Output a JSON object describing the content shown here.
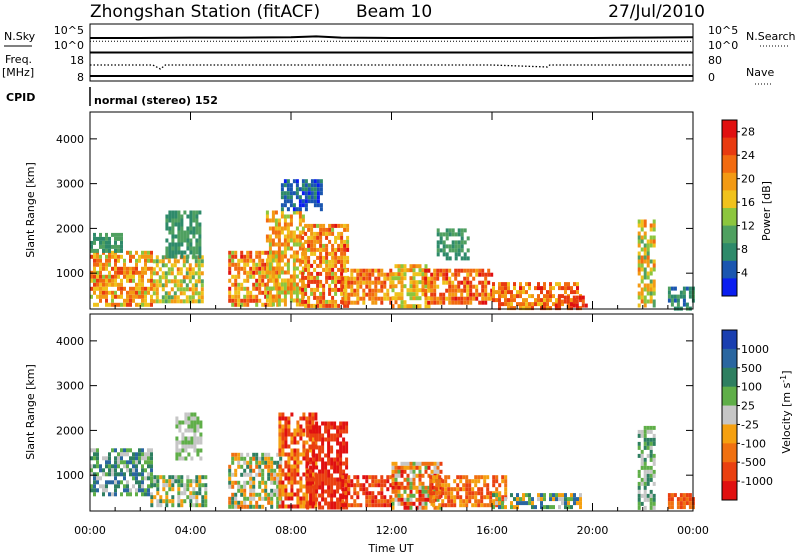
{
  "header": {
    "station": "Zhongshan Station (fitACF)",
    "beam": "Beam 10",
    "date": "27/Jul/2010"
  },
  "top_panels": {
    "nsky_label": "N.Sky",
    "nsky_ticks": [
      "10^5",
      "10^0"
    ],
    "nsearch_label": "N.Search",
    "freq_label": "Freq.",
    "freq_unit": "[MHz]",
    "freq_ticks": [
      "18",
      "8"
    ],
    "nave_label": "Nave",
    "nave_ticks": [
      "80",
      "0"
    ],
    "cpid_label": "CPID",
    "cpid_text": "normal (stereo) 152"
  },
  "colors": {
    "power": [
      "#0a1ef0",
      "#1a56b0",
      "#2e8a6a",
      "#4fa060",
      "#8cc63e",
      "#f0c21c",
      "#f39a14",
      "#f26b10",
      "#e83a10",
      "#e01010"
    ],
    "velocity": [
      "#1a3fb0",
      "#2a66a0",
      "#2e7f60",
      "#5fae48",
      "#c6c6c6",
      "#f5a010",
      "#f07010",
      "#ea4010",
      "#e01010"
    ]
  },
  "chart_data": [
    {
      "type": "line",
      "title": "Zhongshan Station (fitACF)",
      "subtitle": "Beam 10",
      "series": [
        {
          "name": "N.Sky",
          "x": [
            0,
            2,
            4,
            6,
            8,
            9,
            10,
            12,
            14,
            16,
            18,
            20,
            22,
            24
          ],
          "y": [
            3.0,
            3.0,
            3.1,
            3.1,
            3.2,
            3.4,
            3.1,
            3.0,
            3.0,
            3.0,
            3.0,
            3.0,
            3.1,
            3.2
          ]
        },
        {
          "name": "N.Search",
          "x": [
            0,
            4,
            8,
            12,
            16,
            20,
            24
          ],
          "y": [
            2.2,
            2.2,
            2.2,
            2.2,
            2.2,
            2.2,
            2.2
          ]
        }
      ],
      "y_ticks": [
        "10^5",
        "10^0"
      ],
      "y2_ticks": [
        "10^5",
        "10^0"
      ]
    },
    {
      "type": "line",
      "series": [
        {
          "name": "Freq.",
          "x": [
            0,
            2.5,
            2.8,
            3.0,
            4,
            8,
            12,
            16,
            18.2,
            18.3,
            20,
            24
          ],
          "y": [
            15,
            15,
            13,
            15,
            15,
            15,
            15,
            15,
            14,
            15,
            15,
            15
          ]
        },
        {
          "name": "Nave",
          "x": [
            0,
            24
          ],
          "y": [
            12,
            12
          ]
        }
      ],
      "ylabel": "Freq. [MHz]",
      "ylim": [
        8,
        18
      ],
      "y2lim": [
        0,
        80
      ],
      "y_ticks": [
        "18",
        "8"
      ],
      "y2_ticks": [
        "80",
        "0"
      ]
    },
    {
      "type": "heatmap",
      "quantity": "Power [dB]",
      "ylabel": "Slant Range [km]",
      "xlim": [
        0,
        24
      ],
      "ylim": [
        200,
        4600
      ],
      "y_ticks": [
        1000,
        2000,
        3000,
        4000
      ],
      "colorbar": {
        "label": "Power [dB]",
        "ticks": [
          4,
          8,
          12,
          16,
          20,
          24,
          28
        ],
        "range": [
          0,
          30
        ]
      },
      "regions": [
        {
          "t": [
            0.0,
            2.5
          ],
          "r": [
            300,
            1500
          ],
          "v": [
            14,
            26
          ]
        },
        {
          "t": [
            0.0,
            1.2
          ],
          "r": [
            1500,
            1900
          ],
          "v": [
            6,
            12
          ]
        },
        {
          "t": [
            2.5,
            4.5
          ],
          "r": [
            400,
            1400
          ],
          "v": [
            10,
            22
          ]
        },
        {
          "t": [
            3.0,
            4.4
          ],
          "r": [
            1400,
            2400
          ],
          "v": [
            6,
            12
          ]
        },
        {
          "t": [
            5.5,
            7.5
          ],
          "r": [
            300,
            1500
          ],
          "v": [
            14,
            28
          ]
        },
        {
          "t": [
            7.0,
            8.5
          ],
          "r": [
            300,
            2400
          ],
          "v": [
            12,
            24
          ]
        },
        {
          "t": [
            7.6,
            9.2
          ],
          "r": [
            2400,
            3100
          ],
          "v": [
            2,
            8
          ]
        },
        {
          "t": [
            8.4,
            10.2
          ],
          "r": [
            300,
            2100
          ],
          "v": [
            14,
            28
          ]
        },
        {
          "t": [
            10.0,
            12.0
          ],
          "r": [
            300,
            1100
          ],
          "v": [
            16,
            26
          ]
        },
        {
          "t": [
            12.0,
            13.5
          ],
          "r": [
            300,
            1200
          ],
          "v": [
            12,
            22
          ]
        },
        {
          "t": [
            13.3,
            16.0
          ],
          "r": [
            300,
            1100
          ],
          "v": [
            16,
            28
          ]
        },
        {
          "t": [
            13.8,
            15.0
          ],
          "r": [
            1300,
            2000
          ],
          "v": [
            6,
            12
          ]
        },
        {
          "t": [
            16.0,
            19.5
          ],
          "r": [
            250,
            800
          ],
          "v": [
            16,
            28
          ]
        },
        {
          "t": [
            18.5,
            19.8
          ],
          "r": [
            250,
            500
          ],
          "v": [
            22,
            28
          ]
        },
        {
          "t": [
            21.8,
            22.5
          ],
          "r": [
            300,
            2200
          ],
          "v": [
            10,
            22
          ]
        },
        {
          "t": [
            23.0,
            24.0
          ],
          "r": [
            250,
            700
          ],
          "v": [
            4,
            10
          ]
        }
      ]
    },
    {
      "type": "heatmap",
      "quantity": "Velocity [m s^-1]",
      "ylabel": "Slant Range [km]",
      "xlabel": "Time UT",
      "xlim": [
        0,
        24
      ],
      "ylim": [
        200,
        4600
      ],
      "x_ticks": [
        "00:00",
        "04:00",
        "08:00",
        "12:00",
        "16:00",
        "20:00",
        "00:00"
      ],
      "y_ticks": [
        1000,
        2000,
        3000,
        4000
      ],
      "colorbar": {
        "label": "Velocity [m s^-1]",
        "ticks": [
          "1000",
          "500",
          "100",
          "25",
          "-25",
          "-100",
          "-500",
          "-1000"
        ]
      },
      "regions": [
        {
          "t": [
            0.0,
            2.5
          ],
          "r": [
            600,
            1600
          ],
          "v": [
            4,
            8
          ]
        },
        {
          "t": [
            2.4,
            4.6
          ],
          "r": [
            300,
            1000
          ],
          "v": [
            3,
            7
          ]
        },
        {
          "t": [
            3.4,
            4.4
          ],
          "r": [
            1400,
            2400
          ],
          "v": [
            4,
            6
          ]
        },
        {
          "t": [
            5.5,
            7.6
          ],
          "r": [
            300,
            1500
          ],
          "v": [
            2,
            7
          ]
        },
        {
          "t": [
            7.5,
            9.0
          ],
          "r": [
            300,
            2400
          ],
          "v": [
            0,
            4
          ]
        },
        {
          "t": [
            8.6,
            10.2
          ],
          "r": [
            300,
            2200
          ],
          "v": [
            0,
            2
          ]
        },
        {
          "t": [
            10.0,
            12.0
          ],
          "r": [
            300,
            1000
          ],
          "v": [
            0,
            3
          ]
        },
        {
          "t": [
            12.0,
            14.0
          ],
          "r": [
            300,
            1300
          ],
          "v": [
            0,
            6
          ]
        },
        {
          "t": [
            13.5,
            16.5
          ],
          "r": [
            300,
            1000
          ],
          "v": [
            1,
            4
          ]
        },
        {
          "t": [
            16.0,
            19.5
          ],
          "r": [
            250,
            600
          ],
          "v": [
            3,
            8
          ]
        },
        {
          "t": [
            21.8,
            22.5
          ],
          "r": [
            300,
            2100
          ],
          "v": [
            4,
            7
          ]
        },
        {
          "t": [
            23.0,
            24.0
          ],
          "r": [
            250,
            600
          ],
          "v": [
            1,
            3
          ]
        }
      ]
    }
  ],
  "axes": {
    "slant_range_label": "Slant Range [km]",
    "time_label": "Time UT",
    "power_label": "Power [dB]",
    "velocity_label": "Velocity [m s",
    "velocity_sup": "-1",
    "velocity_end": "]"
  }
}
